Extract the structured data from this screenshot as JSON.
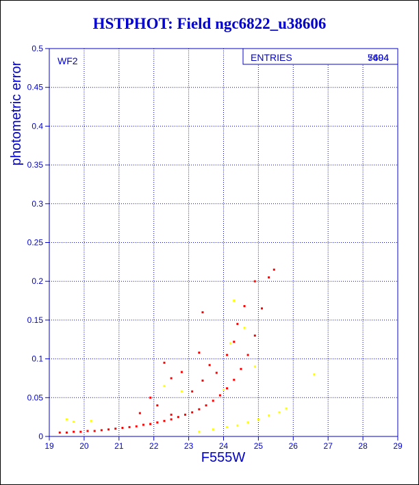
{
  "chart_data": {
    "type": "scatter",
    "title": "HSTPHOT: Field ngc6822_u38606",
    "xlabel": "F555W",
    "ylabel": "photometric error",
    "xlim": [
      19,
      29
    ],
    "ylim": [
      0,
      0.5
    ],
    "x_ticks": [
      "19",
      "20",
      "21",
      "22",
      "23",
      "24",
      "25",
      "26",
      "27",
      "28",
      "29"
    ],
    "y_ticks": [
      "0",
      "0.05",
      "0.1",
      "0.15",
      "0.2",
      "0.25",
      "0.3",
      "0.35",
      "0.4",
      "0.45",
      "0.5"
    ],
    "grid": true,
    "panel_label": "WF2",
    "stats_box": {
      "label": "ENTRIES",
      "values": [
        "5494",
        "7604"
      ]
    },
    "series": [
      {
        "color": "#ff0000",
        "points": [
          [
            19.3,
            0.005
          ],
          [
            19.5,
            0.005
          ],
          [
            19.7,
            0.006
          ],
          [
            19.9,
            0.006
          ],
          [
            20.1,
            0.007
          ],
          [
            20.3,
            0.007
          ],
          [
            20.5,
            0.008
          ],
          [
            20.7,
            0.009
          ],
          [
            20.9,
            0.01
          ],
          [
            21.1,
            0.011
          ],
          [
            21.3,
            0.012
          ],
          [
            21.5,
            0.013
          ],
          [
            21.7,
            0.015
          ],
          [
            21.9,
            0.016
          ],
          [
            22.1,
            0.018
          ],
          [
            22.3,
            0.02
          ],
          [
            22.5,
            0.022
          ],
          [
            22.7,
            0.025
          ],
          [
            22.9,
            0.028
          ],
          [
            23.1,
            0.031
          ],
          [
            23.3,
            0.035
          ],
          [
            23.5,
            0.04
          ],
          [
            23.7,
            0.046
          ],
          [
            23.9,
            0.053
          ],
          [
            24.1,
            0.062
          ],
          [
            24.3,
            0.073
          ],
          [
            24.5,
            0.087
          ],
          [
            24.7,
            0.105
          ],
          [
            24.9,
            0.13
          ],
          [
            25.1,
            0.165
          ],
          [
            25.3,
            0.205
          ],
          [
            25.45,
            0.215
          ],
          [
            22.3,
            0.095
          ],
          [
            22.5,
            0.075
          ],
          [
            22.8,
            0.083
          ],
          [
            22.1,
            0.04
          ],
          [
            21.9,
            0.05
          ],
          [
            23.4,
            0.072
          ],
          [
            23.6,
            0.092
          ],
          [
            23.3,
            0.108
          ],
          [
            23.8,
            0.082
          ],
          [
            24.1,
            0.105
          ],
          [
            24.3,
            0.122
          ],
          [
            24.6,
            0.168
          ],
          [
            24.9,
            0.2
          ],
          [
            24.4,
            0.145
          ],
          [
            23.4,
            0.16
          ],
          [
            23.1,
            0.058
          ],
          [
            22.5,
            0.028
          ],
          [
            21.6,
            0.03
          ]
        ]
      },
      {
        "color": "#ffff00",
        "points": [
          [
            19.5,
            0.022
          ],
          [
            19.7,
            0.019
          ],
          [
            20.2,
            0.02
          ],
          [
            22.3,
            0.065
          ],
          [
            22.8,
            0.058
          ],
          [
            23.3,
            0.006
          ],
          [
            23.7,
            0.009
          ],
          [
            24.1,
            0.012
          ],
          [
            24.4,
            0.014
          ],
          [
            24.7,
            0.018
          ],
          [
            25.0,
            0.022
          ],
          [
            25.3,
            0.027
          ],
          [
            25.6,
            0.031
          ],
          [
            25.8,
            0.036
          ],
          [
            26.6,
            0.08
          ],
          [
            24.6,
            0.14
          ],
          [
            24.9,
            0.09
          ],
          [
            24.3,
            0.175
          ],
          [
            24.2,
            0.12
          ],
          [
            24.0,
            0.06
          ]
        ]
      }
    ]
  }
}
